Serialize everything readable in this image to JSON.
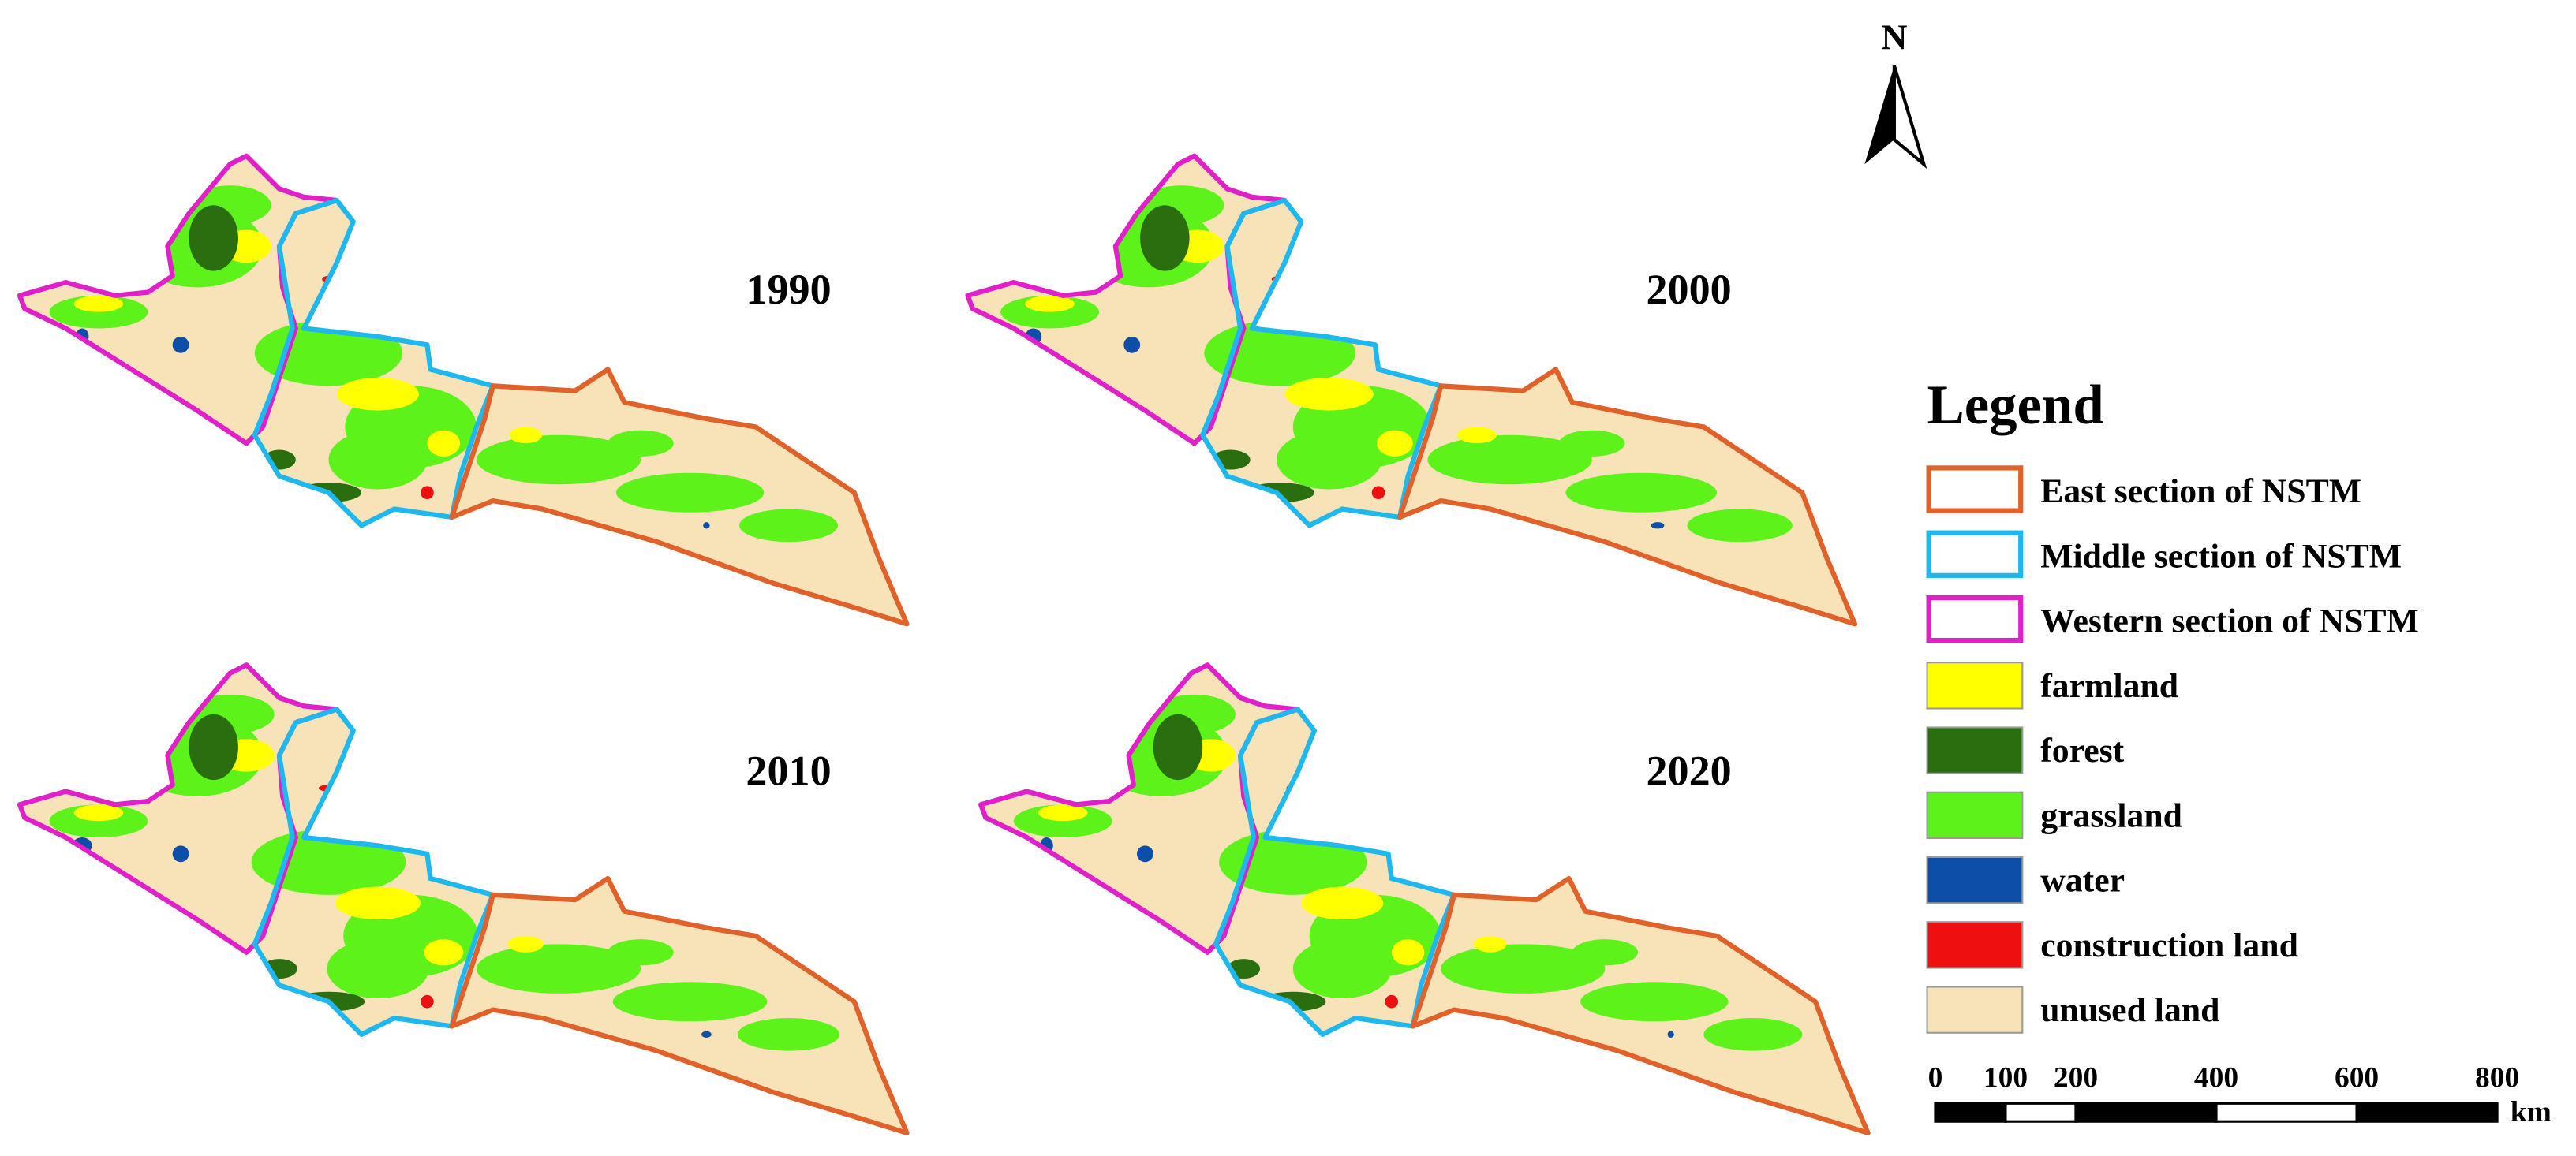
{
  "maps": [
    {
      "year": "1990"
    },
    {
      "year": "2000"
    },
    {
      "year": "2010"
    },
    {
      "year": "2020"
    }
  ],
  "north_arrow": {
    "label": "N"
  },
  "legend": {
    "title": "Legend",
    "items": [
      {
        "label": "East section of NSTM",
        "outline": "#e0622a"
      },
      {
        "label": "Middle section of NSTM",
        "outline": "#1fb8ee"
      },
      {
        "label": "Western section of NSTM",
        "outline": "#e020c8"
      },
      {
        "label": "farmland",
        "fill": "#ffff00"
      },
      {
        "label": "forest",
        "fill": "#2a6e10"
      },
      {
        "label": "grassland",
        "fill": "#5cf21a"
      },
      {
        "label": "water",
        "fill": "#0c4ea8"
      },
      {
        "label": "construction land",
        "fill": "#ee1010"
      },
      {
        "label": "unused land",
        "fill": "#f8e3b8"
      }
    ]
  },
  "scale_bar": {
    "ticks": [
      0,
      100,
      200,
      400,
      600,
      800
    ],
    "unit": "km"
  }
}
